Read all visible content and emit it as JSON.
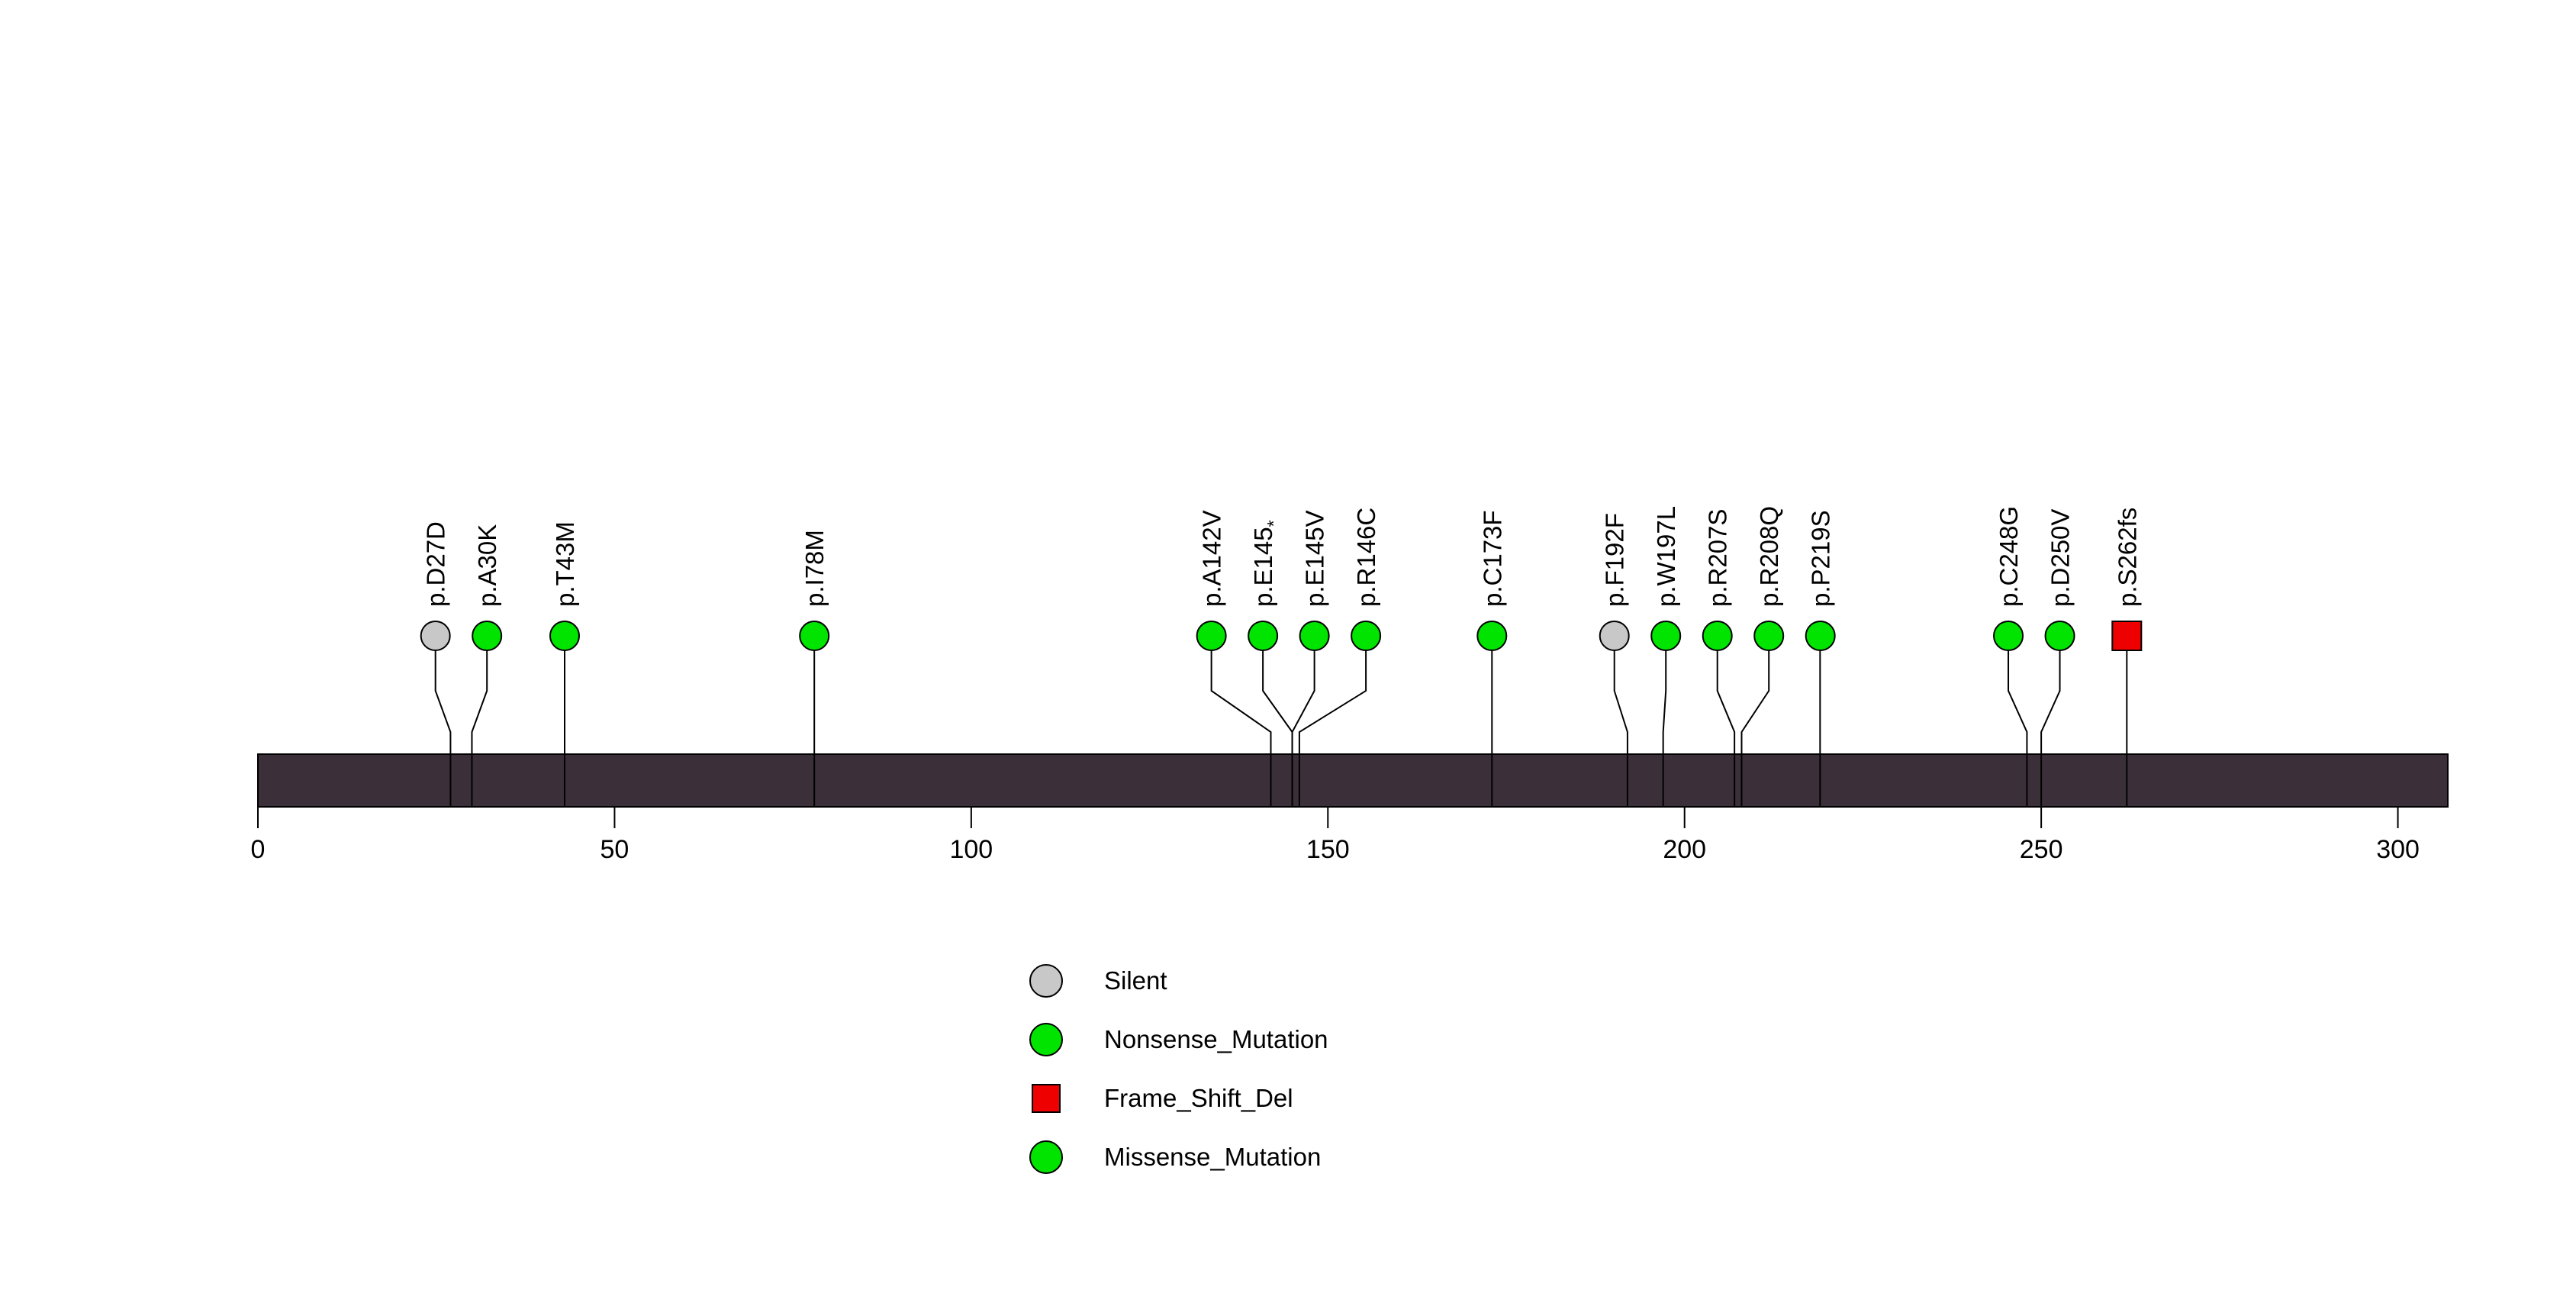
{
  "chart_data": {
    "type": "lollipop",
    "title": "",
    "protein_length": 307,
    "xlim": [
      0,
      307
    ],
    "axis_ticks": [
      "0",
      "50",
      "100",
      "150",
      "200",
      "250",
      "300"
    ],
    "axis_tick_values": [
      0,
      50,
      100,
      150,
      200,
      250,
      300
    ],
    "gene_bar_color": "#3B3039",
    "stem_color": "#000000",
    "marker_stroke": "#000000",
    "class_styles": {
      "Silent": {
        "color": "#C8C8C8",
        "shape": "circle"
      },
      "Nonsense_Mutation": {
        "color": "#00E400",
        "shape": "circle"
      },
      "Frame_Shift_Del": {
        "color": "#EE0000",
        "shape": "square"
      },
      "Missense_Mutation": {
        "color": "#00E400",
        "shape": "circle"
      }
    },
    "mutations": [
      {
        "label": "p.D27D",
        "pos": 27,
        "class": "Silent"
      },
      {
        "label": "p.A30K",
        "pos": 30,
        "class": "Missense_Mutation"
      },
      {
        "label": "p.T43M",
        "pos": 43,
        "class": "Missense_Mutation"
      },
      {
        "label": "p.I78M",
        "pos": 78,
        "class": "Missense_Mutation"
      },
      {
        "label": "p.A142V",
        "pos": 142,
        "class": "Missense_Mutation"
      },
      {
        "label": "p.E145*",
        "pos": 145,
        "class": "Nonsense_Mutation"
      },
      {
        "label": "p.E145V",
        "pos": 145,
        "class": "Missense_Mutation"
      },
      {
        "label": "p.R146C",
        "pos": 146,
        "class": "Missense_Mutation"
      },
      {
        "label": "p.C173F",
        "pos": 173,
        "class": "Missense_Mutation"
      },
      {
        "label": "p.F192F",
        "pos": 192,
        "class": "Silent"
      },
      {
        "label": "p.W197L",
        "pos": 197,
        "class": "Missense_Mutation"
      },
      {
        "label": "p.R207S",
        "pos": 207,
        "class": "Missense_Mutation"
      },
      {
        "label": "p.R208Q",
        "pos": 208,
        "class": "Missense_Mutation"
      },
      {
        "label": "p.P219S",
        "pos": 219,
        "class": "Missense_Mutation"
      },
      {
        "label": "p.C248G",
        "pos": 248,
        "class": "Missense_Mutation"
      },
      {
        "label": "p.D250V",
        "pos": 250,
        "class": "Missense_Mutation"
      },
      {
        "label": "p.S262fs",
        "pos": 262,
        "class": "Frame_Shift_Del"
      }
    ],
    "legend": [
      {
        "label": "Silent",
        "class": "Silent"
      },
      {
        "label": "Nonsense_Mutation",
        "class": "Nonsense_Mutation"
      },
      {
        "label": "Frame_Shift_Del",
        "class": "Frame_Shift_Del"
      },
      {
        "label": "Missense_Mutation",
        "class": "Missense_Mutation"
      }
    ],
    "legend_position": "bottom-center",
    "grid": false
  }
}
